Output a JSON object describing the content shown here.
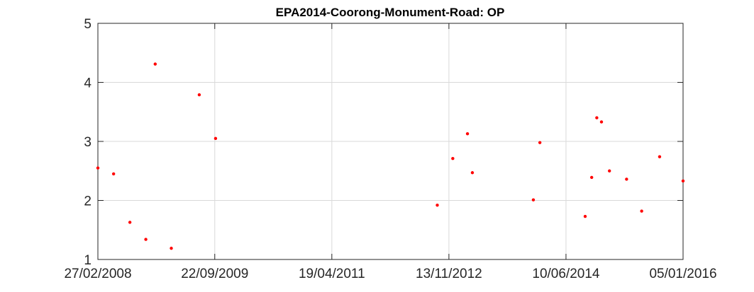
{
  "chart_data": {
    "type": "scatter",
    "title": "EPA2014-Coorong-Monument-Road: OP",
    "xlabel": "",
    "ylabel": "",
    "x_axis_type": "date",
    "xlim": [
      "2008-02-27",
      "2016-01-05"
    ],
    "ylim": [
      1,
      5
    ],
    "x_ticks": [
      {
        "date": "2008-02-27",
        "label": "27/02/2008"
      },
      {
        "date": "2009-09-22",
        "label": "22/09/2009"
      },
      {
        "date": "2011-04-19",
        "label": "19/04/2011"
      },
      {
        "date": "2012-11-13",
        "label": "13/11/2012"
      },
      {
        "date": "2014-06-10",
        "label": "10/06/2014"
      },
      {
        "date": "2016-01-05",
        "label": "05/01/2016"
      }
    ],
    "y_ticks": [
      1,
      2,
      3,
      4,
      5
    ],
    "y_tick_labels": [
      "1",
      "2",
      "3",
      "4",
      "5"
    ],
    "grid": true,
    "marker_color": "#ff0000",
    "series": [
      {
        "points": [
          {
            "x": "2008-02-27",
            "y": 2.55
          },
          {
            "x": "2008-05-14",
            "y": 2.45
          },
          {
            "x": "2008-08-02",
            "y": 1.63
          },
          {
            "x": "2008-10-19",
            "y": 1.34
          },
          {
            "x": "2008-12-04",
            "y": 4.31
          },
          {
            "x": "2009-02-21",
            "y": 1.19
          },
          {
            "x": "2009-07-08",
            "y": 3.79
          },
          {
            "x": "2009-09-26",
            "y": 3.05
          },
          {
            "x": "2012-09-17",
            "y": 1.92
          },
          {
            "x": "2012-12-02",
            "y": 2.71
          },
          {
            "x": "2013-02-12",
            "y": 3.13
          },
          {
            "x": "2013-03-08",
            "y": 2.47
          },
          {
            "x": "2014-01-01",
            "y": 2.01
          },
          {
            "x": "2014-02-02",
            "y": 2.98
          },
          {
            "x": "2014-09-12",
            "y": 1.73
          },
          {
            "x": "2014-10-14",
            "y": 2.39
          },
          {
            "x": "2014-11-08",
            "y": 3.4
          },
          {
            "x": "2014-12-01",
            "y": 3.33
          },
          {
            "x": "2015-01-09",
            "y": 2.5
          },
          {
            "x": "2015-04-03",
            "y": 2.36
          },
          {
            "x": "2015-06-16",
            "y": 1.82
          },
          {
            "x": "2015-09-12",
            "y": 2.74
          },
          {
            "x": "2016-01-05",
            "y": 2.33
          }
        ]
      }
    ]
  }
}
